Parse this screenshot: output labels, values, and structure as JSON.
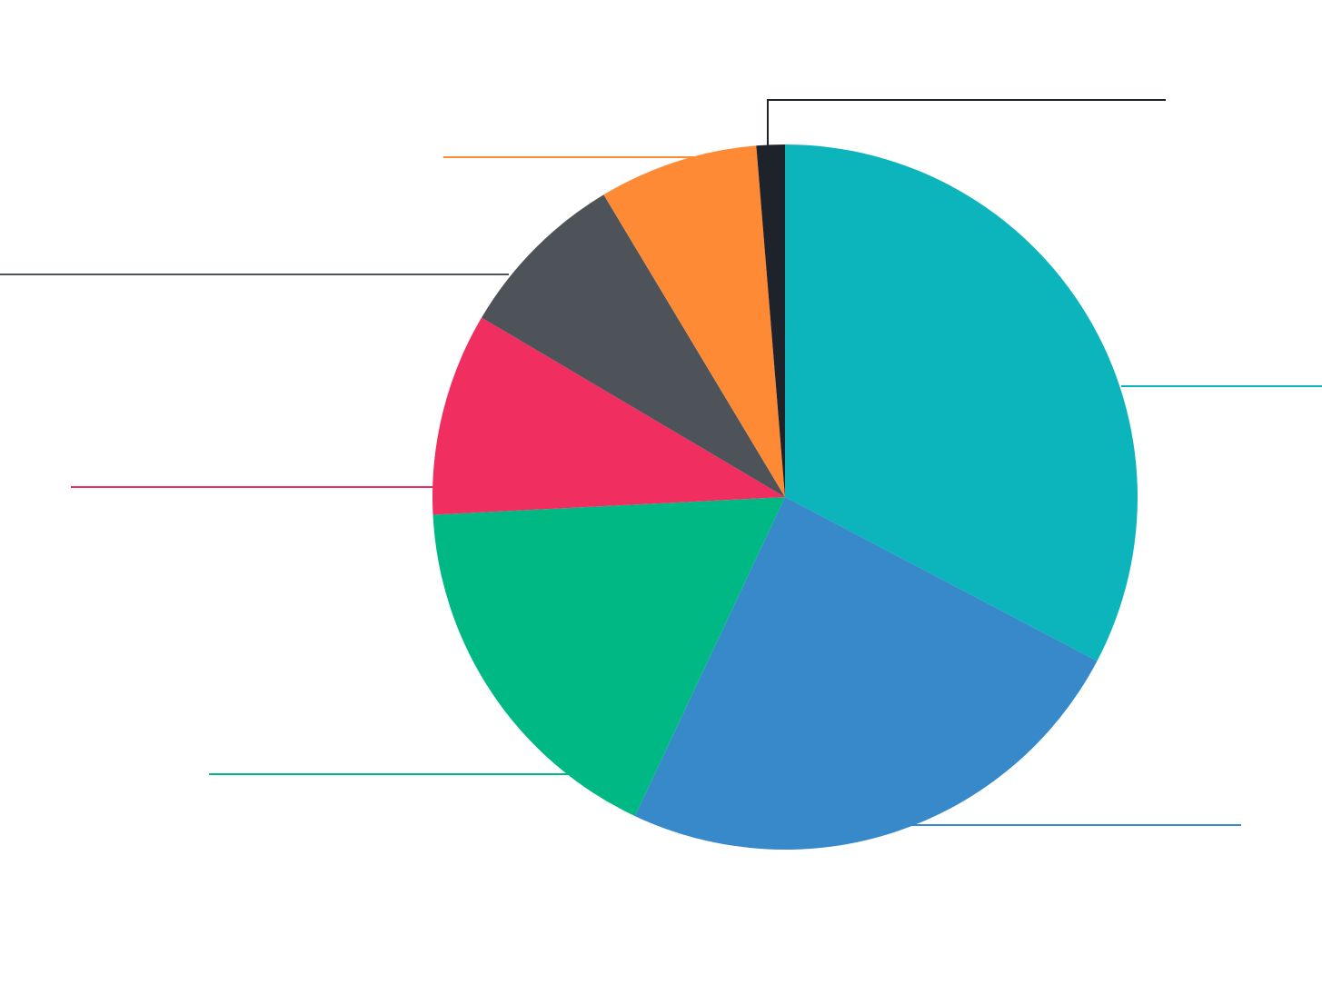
{
  "chart_data": {
    "type": "pie",
    "start_angle_deg": 0,
    "direction": "clockwise",
    "legend": "none",
    "slices": [
      {
        "value": 32.7,
        "color": "#0CB4BC"
      },
      {
        "value": 24.3,
        "color": "#3889C9"
      },
      {
        "value": 17.2,
        "color": "#00B884"
      },
      {
        "value": 9.3,
        "color": "#F02E5F"
      },
      {
        "value": 7.9,
        "color": "#4E535A"
      },
      {
        "value": 7.3,
        "color": "#FF8A36"
      },
      {
        "value": 1.3,
        "color": "#1E232B"
      }
    ]
  }
}
